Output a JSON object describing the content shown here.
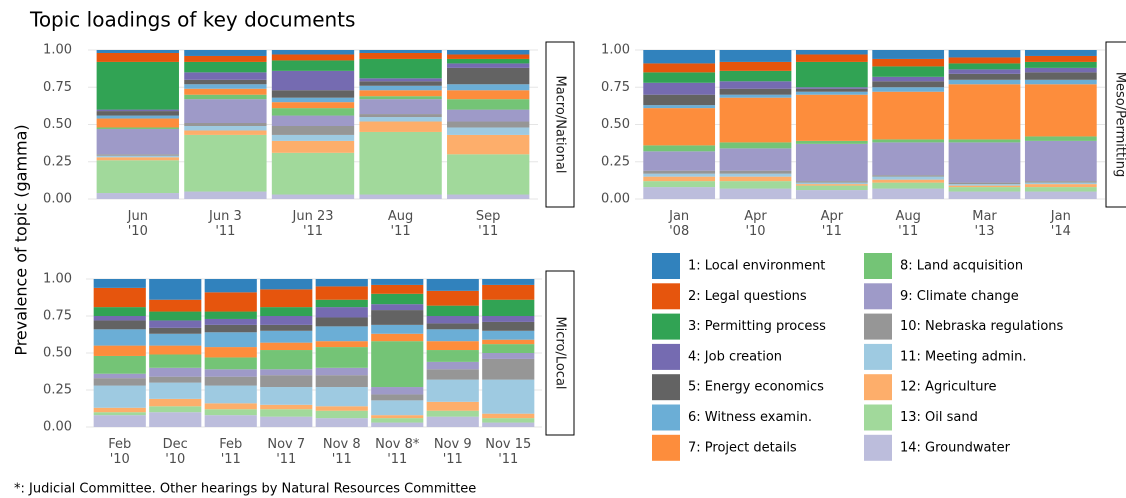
{
  "title": "Topic loadings of key documents",
  "y_label": "Prevalence of topic (gamma)",
  "footnote": "*: Judicial Committee. Other hearings by Natural Resources Committee",
  "chart_data": [
    {
      "type": "bar",
      "stacked": true,
      "facet_label": "Macro/National",
      "categories": [
        "Jun\n'10",
        "Jun 3\n'11",
        "Jun 23\n'11",
        "Aug\n'11",
        "Sep\n'11"
      ],
      "ylim": [
        0,
        1
      ],
      "yticks": [
        {
          "value": 0,
          "label": "0.00"
        },
        {
          "value": 0.25,
          "label": "0.25"
        },
        {
          "value": 0.5,
          "label": "0.50"
        },
        {
          "value": 0.75,
          "label": "0.75"
        },
        {
          "value": 1,
          "label": "1.00"
        }
      ],
      "grid": true,
      "series": [
        {
          "name": "1: Local environment",
          "color": "#3182bd",
          "values": [
            0.02,
            0.04,
            0.03,
            0.02,
            0.03
          ]
        },
        {
          "name": "2: Legal questions",
          "color": "#e6550d",
          "values": [
            0.06,
            0.04,
            0.04,
            0.04,
            0.03
          ]
        },
        {
          "name": "3: Permitting process",
          "color": "#31a354",
          "values": [
            0.32,
            0.07,
            0.07,
            0.13,
            0.03
          ]
        },
        {
          "name": "4: Job creation",
          "color": "#756bb1",
          "values": [
            0.01,
            0.05,
            0.13,
            0.02,
            0.03
          ]
        },
        {
          "name": "5: Energy economics",
          "color": "#636363",
          "values": [
            0.03,
            0.03,
            0.05,
            0.03,
            0.11
          ]
        },
        {
          "name": "6: Witness examin.",
          "color": "#6baed6",
          "values": [
            0.02,
            0.03,
            0.03,
            0.03,
            0.04
          ]
        },
        {
          "name": "7: Project details",
          "color": "#fd8d3c",
          "values": [
            0.06,
            0.04,
            0.04,
            0.04,
            0.06
          ]
        },
        {
          "name": "8: Land acquisition",
          "color": "#74c476",
          "values": [
            0.01,
            0.03,
            0.05,
            0.02,
            0.07
          ]
        },
        {
          "name": "9: Climate change",
          "color": "#9e9ac8",
          "values": [
            0.17,
            0.16,
            0.07,
            0.1,
            0.08
          ]
        },
        {
          "name": "10: Nebraska regulations",
          "color": "#969696",
          "values": [
            0.01,
            0.02,
            0.06,
            0.02,
            0.04
          ]
        },
        {
          "name": "11: Meeting admin.",
          "color": "#9ecae1",
          "values": [
            0.01,
            0.03,
            0.04,
            0.03,
            0.05
          ]
        },
        {
          "name": "12: Agriculture",
          "color": "#fdae6b",
          "values": [
            0.02,
            0.03,
            0.08,
            0.07,
            0.13
          ]
        },
        {
          "name": "13: Oil sand",
          "color": "#a1d99b",
          "values": [
            0.22,
            0.38,
            0.28,
            0.42,
            0.27
          ]
        },
        {
          "name": "14: Groundwater",
          "color": "#bcbddc",
          "values": [
            0.04,
            0.05,
            0.03,
            0.03,
            0.03
          ]
        }
      ]
    },
    {
      "type": "bar",
      "stacked": true,
      "facet_label": "Meso/Permitting",
      "categories": [
        "Jan\n'08",
        "Apr\n'10",
        "Apr\n'11",
        "Aug\n'11",
        "Mar\n'13",
        "Jan\n'14"
      ],
      "ylim": [
        0,
        1
      ],
      "yticks": [
        {
          "value": 0,
          "label": "0.00"
        },
        {
          "value": 0.25,
          "label": "0.25"
        },
        {
          "value": 0.5,
          "label": "0.50"
        },
        {
          "value": 0.75,
          "label": "0.75"
        },
        {
          "value": 1,
          "label": "1.00"
        }
      ],
      "grid": true,
      "series": [
        {
          "name": "1: Local environment",
          "color": "#3182bd",
          "values": [
            0.09,
            0.08,
            0.03,
            0.06,
            0.05,
            0.04
          ]
        },
        {
          "name": "2: Legal questions",
          "color": "#e6550d",
          "values": [
            0.06,
            0.06,
            0.05,
            0.05,
            0.04,
            0.04
          ]
        },
        {
          "name": "3: Permitting process",
          "color": "#31a354",
          "values": [
            0.07,
            0.07,
            0.17,
            0.07,
            0.04,
            0.04
          ]
        },
        {
          "name": "4: Job creation",
          "color": "#756bb1",
          "values": [
            0.08,
            0.05,
            0.01,
            0.03,
            0.03,
            0.03
          ]
        },
        {
          "name": "5: Energy economics",
          "color": "#636363",
          "values": [
            0.07,
            0.04,
            0.02,
            0.04,
            0.04,
            0.05
          ]
        },
        {
          "name": "6: Witness examin.",
          "color": "#6baed6",
          "values": [
            0.02,
            0.02,
            0.02,
            0.03,
            0.03,
            0.03
          ]
        },
        {
          "name": "7: Project details",
          "color": "#fd8d3c",
          "values": [
            0.25,
            0.3,
            0.31,
            0.32,
            0.37,
            0.35
          ]
        },
        {
          "name": "8: Land acquisition",
          "color": "#74c476",
          "values": [
            0.04,
            0.04,
            0.02,
            0.02,
            0.02,
            0.03
          ]
        },
        {
          "name": "9: Climate change",
          "color": "#9e9ac8",
          "values": [
            0.13,
            0.15,
            0.25,
            0.22,
            0.27,
            0.27
          ]
        },
        {
          "name": "10: Nebraska regulations",
          "color": "#969696",
          "values": [
            0.02,
            0.02,
            0.01,
            0.01,
            0.01,
            0.01
          ]
        },
        {
          "name": "11: Meeting admin.",
          "color": "#9ecae1",
          "values": [
            0.02,
            0.02,
            0.01,
            0.02,
            0.01,
            0.01
          ]
        },
        {
          "name": "12: Agriculture",
          "color": "#fdae6b",
          "values": [
            0.03,
            0.03,
            0.01,
            0.02,
            0.01,
            0.02
          ]
        },
        {
          "name": "13: Oil sand",
          "color": "#a1d99b",
          "values": [
            0.04,
            0.05,
            0.03,
            0.04,
            0.03,
            0.03
          ]
        },
        {
          "name": "14: Groundwater",
          "color": "#bcbddc",
          "values": [
            0.08,
            0.07,
            0.06,
            0.07,
            0.05,
            0.05
          ]
        }
      ]
    },
    {
      "type": "bar",
      "stacked": true,
      "facet_label": "Micro/Local",
      "categories": [
        "Feb\n'10",
        "Dec\n'10",
        "Feb\n'11",
        "Nov 7\n'11",
        "Nov 8\n'11",
        "Nov 8*\n'11",
        "Nov 9\n'11",
        "Nov 15\n'11"
      ],
      "ylim": [
        0,
        1
      ],
      "yticks": [
        {
          "value": 0,
          "label": "0.00"
        },
        {
          "value": 0.25,
          "label": "0.25"
        },
        {
          "value": 0.5,
          "label": "0.50"
        },
        {
          "value": 0.75,
          "label": "0.75"
        },
        {
          "value": 1,
          "label": "1.00"
        }
      ],
      "grid": true,
      "series": [
        {
          "name": "1: Local environment",
          "color": "#3182bd",
          "values": [
            0.06,
            0.14,
            0.09,
            0.07,
            0.05,
            0.04,
            0.08,
            0.04
          ]
        },
        {
          "name": "2: Legal questions",
          "color": "#e6550d",
          "values": [
            0.13,
            0.08,
            0.13,
            0.12,
            0.09,
            0.06,
            0.1,
            0.1
          ]
        },
        {
          "name": "3: Permitting process",
          "color": "#31a354",
          "values": [
            0.06,
            0.06,
            0.05,
            0.06,
            0.05,
            0.07,
            0.07,
            0.11
          ]
        },
        {
          "name": "4: Job creation",
          "color": "#756bb1",
          "values": [
            0.03,
            0.05,
            0.04,
            0.06,
            0.07,
            0.04,
            0.05,
            0.04
          ]
        },
        {
          "name": "5: Energy economics",
          "color": "#636363",
          "values": [
            0.06,
            0.04,
            0.05,
            0.04,
            0.06,
            0.1,
            0.04,
            0.06
          ]
        },
        {
          "name": "6: Witness examin.",
          "color": "#6baed6",
          "values": [
            0.11,
            0.08,
            0.1,
            0.08,
            0.1,
            0.06,
            0.08,
            0.06
          ]
        },
        {
          "name": "7: Project details",
          "color": "#fd8d3c",
          "values": [
            0.07,
            0.06,
            0.07,
            0.05,
            0.04,
            0.05,
            0.06,
            0.03
          ]
        },
        {
          "name": "8: Land acquisition",
          "color": "#74c476",
          "values": [
            0.12,
            0.09,
            0.08,
            0.13,
            0.14,
            0.31,
            0.08,
            0.06
          ]
        },
        {
          "name": "9: Climate change",
          "color": "#9e9ac8",
          "values": [
            0.03,
            0.06,
            0.05,
            0.04,
            0.05,
            0.05,
            0.05,
            0.04
          ]
        },
        {
          "name": "10: Nebraska regulations",
          "color": "#969696",
          "values": [
            0.05,
            0.04,
            0.06,
            0.08,
            0.08,
            0.04,
            0.07,
            0.14
          ]
        },
        {
          "name": "11: Meeting admin.",
          "color": "#9ecae1",
          "values": [
            0.15,
            0.11,
            0.12,
            0.12,
            0.13,
            0.1,
            0.15,
            0.23
          ]
        },
        {
          "name": "12: Agriculture",
          "color": "#fdae6b",
          "values": [
            0.03,
            0.05,
            0.04,
            0.03,
            0.03,
            0.02,
            0.06,
            0.03
          ]
        },
        {
          "name": "13: Oil sand",
          "color": "#a1d99b",
          "values": [
            0.02,
            0.04,
            0.04,
            0.05,
            0.05,
            0.03,
            0.04,
            0.03
          ]
        },
        {
          "name": "14: Groundwater",
          "color": "#bcbddc",
          "values": [
            0.08,
            0.1,
            0.08,
            0.07,
            0.06,
            0.03,
            0.07,
            0.03
          ]
        }
      ]
    }
  ]
}
